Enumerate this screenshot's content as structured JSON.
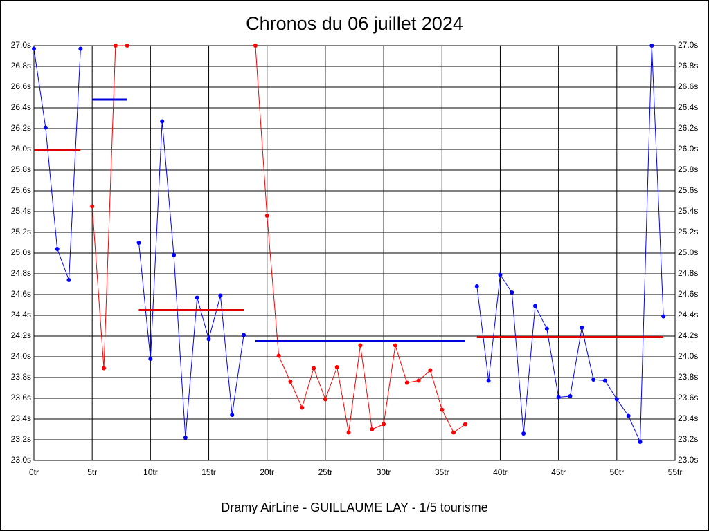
{
  "chart_data": {
    "type": "line",
    "title": "Chronos du 06 juillet 2024",
    "xlabel": "Dramy AirLine - GUILLAUME LAY - 1/5 tourisme",
    "xlim": [
      0,
      55
    ],
    "xticks": [
      {
        "value": 0,
        "label": "0tr"
      },
      {
        "value": 5,
        "label": "5tr"
      },
      {
        "value": 10,
        "label": "10tr"
      },
      {
        "value": 15,
        "label": "15tr"
      },
      {
        "value": 20,
        "label": "20tr"
      },
      {
        "value": 25,
        "label": "25tr"
      },
      {
        "value": 30,
        "label": "30tr"
      },
      {
        "value": 35,
        "label": "35tr"
      },
      {
        "value": 40,
        "label": "40tr"
      },
      {
        "value": 45,
        "label": "45tr"
      },
      {
        "value": 50,
        "label": "50tr"
      },
      {
        "value": 55,
        "label": "55tr"
      }
    ],
    "ylim": [
      23.0,
      27.0
    ],
    "yticks": [
      {
        "value": 23.0,
        "label": "23.0s"
      },
      {
        "value": 23.2,
        "label": "23.2s"
      },
      {
        "value": 23.4,
        "label": "23.4s"
      },
      {
        "value": 23.6,
        "label": "23.6s"
      },
      {
        "value": 23.8,
        "label": "23.8s"
      },
      {
        "value": 24.0,
        "label": "24.0s"
      },
      {
        "value": 24.2,
        "label": "24.2s"
      },
      {
        "value": 24.4,
        "label": "24.4s"
      },
      {
        "value": 24.6,
        "label": "24.6s"
      },
      {
        "value": 24.8,
        "label": "24.8s"
      },
      {
        "value": 25.0,
        "label": "25.0s"
      },
      {
        "value": 25.2,
        "label": "25.2s"
      },
      {
        "value": 25.4,
        "label": "25.4s"
      },
      {
        "value": 25.6,
        "label": "25.6s"
      },
      {
        "value": 25.8,
        "label": "25.8s"
      },
      {
        "value": 26.0,
        "label": "26.0s"
      },
      {
        "value": 26.2,
        "label": "26.2s"
      },
      {
        "value": 26.4,
        "label": "26.4s"
      },
      {
        "value": 26.6,
        "label": "26.6s"
      },
      {
        "value": 26.8,
        "label": "26.8s"
      },
      {
        "value": 27.0,
        "label": "27.0s"
      }
    ],
    "grid": true,
    "series": [
      {
        "color": "#0000ff",
        "x": [
          0,
          1,
          2,
          3,
          4
        ],
        "values": [
          26.97,
          26.21,
          25.04,
          24.74,
          26.97
        ]
      },
      {
        "color": "#ff0000",
        "x": [
          5,
          6,
          7,
          8
        ],
        "values": [
          25.45,
          23.89,
          27.0,
          27.0
        ]
      },
      {
        "color": "#0000ff",
        "x": [
          9,
          10,
          11,
          12,
          13,
          14,
          15,
          16,
          17,
          18
        ],
        "values": [
          25.1,
          23.98,
          26.27,
          24.98,
          23.22,
          24.57,
          24.17,
          24.59,
          23.44,
          24.21
        ]
      },
      {
        "color": "#ff0000",
        "x": [
          19,
          20,
          21,
          22,
          23,
          24,
          25,
          26,
          27,
          28,
          29,
          30,
          31,
          32,
          33,
          34,
          35,
          36,
          37
        ],
        "values": [
          27.0,
          25.36,
          24.01,
          23.76,
          23.51,
          23.89,
          23.59,
          23.9,
          23.27,
          24.11,
          23.3,
          23.35,
          24.11,
          23.75,
          23.77,
          23.87,
          23.49,
          23.27,
          23.35
        ]
      },
      {
        "color": "#0000ff",
        "x": [
          38,
          39,
          40,
          41,
          42,
          43,
          44,
          45,
          46,
          47,
          48,
          49,
          50,
          51,
          52,
          53,
          54
        ],
        "values": [
          24.68,
          23.77,
          24.79,
          24.62,
          23.26,
          24.49,
          24.27,
          23.61,
          23.62,
          24.28,
          23.78,
          23.77,
          23.59,
          23.43,
          23.18,
          27.0,
          24.39
        ]
      }
    ],
    "averages": [
      {
        "color": "#dd0000",
        "x_start": 0,
        "x_end": 4,
        "value": 25.99
      },
      {
        "color": "#0000dd",
        "x_start": 5,
        "x_end": 8,
        "value": 26.48
      },
      {
        "color": "#dd0000",
        "x_start": 9,
        "x_end": 18,
        "value": 24.45
      },
      {
        "color": "#0000dd",
        "x_start": 19,
        "x_end": 37,
        "value": 24.15
      },
      {
        "color": "#dd0000",
        "x_start": 38,
        "x_end": 54,
        "value": 24.19
      }
    ]
  }
}
